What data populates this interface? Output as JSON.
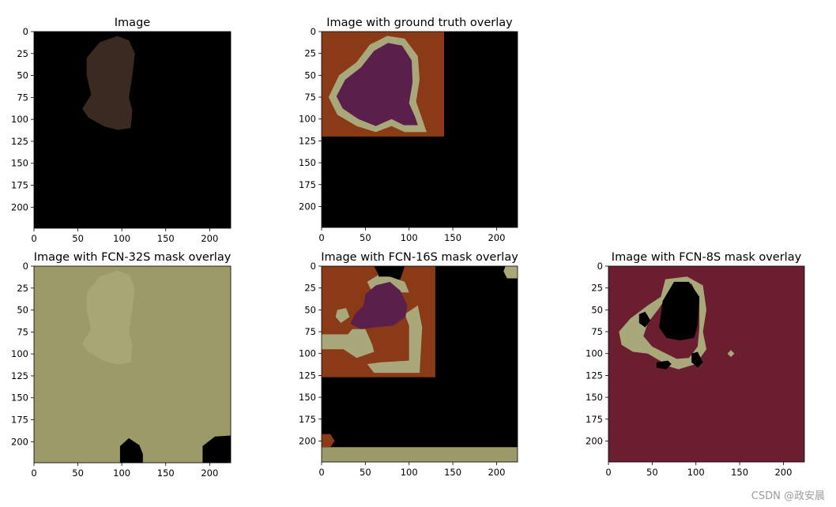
{
  "chart_data": [
    {
      "type": "image",
      "title": "Image",
      "xlim": [
        0,
        224
      ],
      "ylim": [
        224,
        0
      ],
      "x_ticks": [
        0,
        50,
        100,
        150,
        200
      ],
      "y_ticks": [
        0,
        25,
        50,
        75,
        100,
        125,
        150,
        175,
        200
      ],
      "background_color": "#000000",
      "regions": [
        {
          "label": "dog",
          "color": "#3a2a20",
          "points": [
            [
              60,
              30
            ],
            [
              75,
              12
            ],
            [
              95,
              5
            ],
            [
              108,
              10
            ],
            [
              115,
              25
            ],
            [
              112,
              50
            ],
            [
              108,
              75
            ],
            [
              112,
              90
            ],
            [
              110,
              110
            ],
            [
              95,
              112
            ],
            [
              80,
              108
            ],
            [
              62,
              98
            ],
            [
              55,
              88
            ],
            [
              65,
              72
            ],
            [
              60,
              50
            ]
          ]
        }
      ]
    },
    {
      "type": "image",
      "title": "Image with ground truth overlay",
      "xlim": [
        0,
        224
      ],
      "ylim": [
        224,
        0
      ],
      "x_ticks": [
        0,
        50,
        100,
        150,
        200
      ],
      "y_ticks": [
        0,
        25,
        50,
        75,
        100,
        125,
        150,
        175,
        200
      ],
      "background_color": "#000000",
      "regions": [
        {
          "label": "background",
          "color": "#8b3a17",
          "points": [
            [
              0,
              0
            ],
            [
              140,
              0
            ],
            [
              140,
              120
            ],
            [
              0,
              120
            ]
          ]
        },
        {
          "label": "border",
          "color": "#a8a87a",
          "points": [
            [
              55,
              15
            ],
            [
              75,
              5
            ],
            [
              95,
              8
            ],
            [
              110,
              28
            ],
            [
              112,
              55
            ],
            [
              108,
              80
            ],
            [
              115,
              100
            ],
            [
              120,
              115
            ],
            [
              95,
              115
            ],
            [
              80,
              108
            ],
            [
              62,
              115
            ],
            [
              40,
              108
            ],
            [
              18,
              95
            ],
            [
              8,
              75
            ],
            [
              20,
              50
            ],
            [
              40,
              35
            ]
          ]
        },
        {
          "label": "dog",
          "color": "#5a1f4a",
          "points": [
            [
              60,
              22
            ],
            [
              76,
              13
            ],
            [
              92,
              16
            ],
            [
              103,
              33
            ],
            [
              104,
              58
            ],
            [
              100,
              82
            ],
            [
              107,
              98
            ],
            [
              110,
              107
            ],
            [
              94,
              107
            ],
            [
              80,
              100
            ],
            [
              62,
              108
            ],
            [
              42,
              100
            ],
            [
              24,
              88
            ],
            [
              17,
              74
            ],
            [
              27,
              55
            ],
            [
              45,
              41
            ]
          ]
        }
      ]
    },
    {
      "type": "image",
      "title": "Image with FCN-32S mask overlay",
      "xlim": [
        0,
        224
      ],
      "ylim": [
        224,
        0
      ],
      "x_ticks": [
        0,
        50,
        100,
        150,
        200
      ],
      "y_ticks": [
        0,
        25,
        50,
        75,
        100,
        125,
        150,
        175,
        200
      ],
      "background_color": "#9b9a68",
      "regions": [
        {
          "label": "dog",
          "color": "#a8a673",
          "points": [
            [
              60,
              30
            ],
            [
              75,
              12
            ],
            [
              95,
              5
            ],
            [
              108,
              10
            ],
            [
              115,
              25
            ],
            [
              112,
              50
            ],
            [
              108,
              75
            ],
            [
              112,
              90
            ],
            [
              110,
              110
            ],
            [
              95,
              112
            ],
            [
              80,
              108
            ],
            [
              62,
              98
            ],
            [
              55,
              88
            ],
            [
              65,
              72
            ],
            [
              60,
              50
            ]
          ]
        },
        {
          "label": "black-left",
          "color": "#000000",
          "points": [
            [
              98,
              224
            ],
            [
              98,
              205
            ],
            [
              108,
              196
            ],
            [
              120,
              204
            ],
            [
              124,
              214
            ],
            [
              124,
              224
            ]
          ]
        },
        {
          "label": "black-right",
          "color": "#000000",
          "points": [
            [
              192,
              224
            ],
            [
              192,
              205
            ],
            [
              206,
              194
            ],
            [
              224,
              193
            ],
            [
              224,
              224
            ]
          ]
        }
      ]
    },
    {
      "type": "image",
      "title": "Image with FCN-16S mask overlay",
      "xlim": [
        0,
        224
      ],
      "ylim": [
        224,
        0
      ],
      "x_ticks": [
        0,
        50,
        100,
        150,
        200
      ],
      "y_ticks": [
        0,
        25,
        50,
        75,
        100,
        125,
        150,
        175,
        200
      ],
      "background_color": "#000000",
      "regions": [
        {
          "label": "orange-top",
          "color": "#8b3a17",
          "points": [
            [
              0,
              0
            ],
            [
              60,
              0
            ],
            [
              65,
              10
            ],
            [
              60,
              20
            ],
            [
              90,
              15
            ],
            [
              95,
              0
            ],
            [
              130,
              0
            ],
            [
              145,
              15
            ],
            [
              145,
              120
            ],
            [
              135,
              127
            ],
            [
              0,
              127
            ]
          ]
        },
        {
          "label": "yellow-left",
          "color": "#a8a87a",
          "points": [
            [
              0,
              78
            ],
            [
              30,
              78
            ],
            [
              35,
              72
            ],
            [
              50,
              72
            ],
            [
              58,
              90
            ],
            [
              60,
              98
            ],
            [
              40,
              105
            ],
            [
              25,
              95
            ],
            [
              0,
              95
            ]
          ]
        },
        {
          "label": "yellow-right",
          "color": "#a8a87a",
          "points": [
            [
              95,
              55
            ],
            [
              110,
              45
            ],
            [
              115,
              70
            ],
            [
              112,
              122
            ],
            [
              60,
              122
            ],
            [
              52,
              112
            ],
            [
              68,
              110
            ],
            [
              100,
              108
            ],
            [
              100,
              68
            ]
          ]
        },
        {
          "label": "yellow-top",
          "color": "#a8a87a",
          "points": [
            [
              52,
              18
            ],
            [
              65,
              10
            ],
            [
              78,
              12
            ],
            [
              95,
              18
            ],
            [
              100,
              30
            ],
            [
              88,
              30
            ],
            [
              70,
              25
            ],
            [
              58,
              30
            ]
          ]
        },
        {
          "label": "yellow-blob",
          "color": "#a8a87a",
          "points": [
            [
              18,
              50
            ],
            [
              28,
              48
            ],
            [
              32,
              58
            ],
            [
              22,
              65
            ],
            [
              16,
              58
            ]
          ]
        },
        {
          "label": "purple-dog",
          "color": "#5a1f4a",
          "points": [
            [
              50,
              32
            ],
            [
              62,
              22
            ],
            [
              78,
              18
            ],
            [
              90,
              28
            ],
            [
              98,
              45
            ],
            [
              96,
              58
            ],
            [
              82,
              68
            ],
            [
              62,
              70
            ],
            [
              45,
              72
            ],
            [
              33,
              66
            ],
            [
              38,
              55
            ],
            [
              48,
              45
            ]
          ]
        },
        {
          "label": "black-top-1",
          "color": "#000000",
          "points": [
            [
              65,
              0
            ],
            [
              80,
              0
            ],
            [
              80,
              12
            ],
            [
              65,
              12
            ]
          ]
        },
        {
          "label": "black-top-2",
          "color": "#000000",
          "points": [
            [
              130,
              0
            ],
            [
              224,
              0
            ],
            [
              224,
              224
            ],
            [
              145,
              224
            ],
            [
              145,
              130
            ],
            [
              130,
              130
            ],
            [
              130,
              15
            ]
          ]
        },
        {
          "label": "yellow-corner",
          "color": "#a8a87a",
          "points": [
            [
              210,
              0
            ],
            [
              224,
              0
            ],
            [
              224,
              14
            ],
            [
              212,
              14
            ],
            [
              208,
              6
            ]
          ]
        },
        {
          "label": "yellow-bottom",
          "color": "#9b9a68",
          "points": [
            [
              0,
              207
            ],
            [
              224,
              207
            ],
            [
              224,
              224
            ],
            [
              0,
              224
            ]
          ]
        },
        {
          "label": "orange-bottom",
          "color": "#8b3a17",
          "points": [
            [
              0,
              192
            ],
            [
              10,
              192
            ],
            [
              15,
              200
            ],
            [
              10,
              207
            ],
            [
              0,
              207
            ]
          ]
        }
      ]
    },
    {
      "type": "image",
      "title": "Image with FCN-8S mask overlay",
      "xlim": [
        0,
        224
      ],
      "ylim": [
        224,
        0
      ],
      "x_ticks": [
        0,
        50,
        100,
        150,
        200
      ],
      "y_ticks": [
        0,
        25,
        50,
        75,
        100,
        125,
        150,
        175,
        200
      ],
      "background_color": "#6a1e30",
      "regions": [
        {
          "label": "yellow-ring",
          "color": "#a8a87a",
          "points": [
            [
              65,
              15
            ],
            [
              90,
              12
            ],
            [
              108,
              22
            ],
            [
              112,
              50
            ],
            [
              108,
              75
            ],
            [
              112,
              95
            ],
            [
              100,
              112
            ],
            [
              80,
              118
            ],
            [
              70,
              115
            ],
            [
              62,
              110
            ],
            [
              45,
              100
            ],
            [
              28,
              98
            ],
            [
              15,
              90
            ],
            [
              12,
              75
            ],
            [
              25,
              60
            ],
            [
              45,
              45
            ],
            [
              60,
              35
            ]
          ]
        },
        {
          "label": "dark-outer",
          "color": "#6a1e30",
          "points": [
            [
              58,
              48
            ],
            [
              75,
              22
            ],
            [
              95,
              20
            ],
            [
              104,
              38
            ],
            [
              104,
              70
            ],
            [
              102,
              92
            ],
            [
              92,
              105
            ],
            [
              78,
              106
            ],
            [
              62,
              98
            ],
            [
              50,
              92
            ],
            [
              40,
              80
            ],
            [
              45,
              65
            ]
          ]
        },
        {
          "label": "black-dog",
          "color": "#000000",
          "points": [
            [
              62,
              40
            ],
            [
              75,
              18
            ],
            [
              92,
              18
            ],
            [
              104,
              35
            ],
            [
              102,
              68
            ],
            [
              98,
              82
            ],
            [
              82,
              85
            ],
            [
              66,
              82
            ],
            [
              58,
              70
            ]
          ]
        },
        {
          "label": "black-spot-1",
          "color": "#000000",
          "points": [
            [
              35,
              55
            ],
            [
              42,
              52
            ],
            [
              48,
              62
            ],
            [
              42,
              70
            ],
            [
              35,
              65
            ]
          ]
        },
        {
          "label": "black-spot-2",
          "color": "#000000",
          "points": [
            [
              55,
              110
            ],
            [
              68,
              108
            ],
            [
              72,
              112
            ],
            [
              66,
              118
            ],
            [
              55,
              116
            ]
          ]
        },
        {
          "label": "black-spot-3",
          "color": "#000000",
          "points": [
            [
              95,
              100
            ],
            [
              102,
              98
            ],
            [
              108,
              110
            ],
            [
              102,
              116
            ],
            [
              95,
              110
            ]
          ]
        },
        {
          "label": "yellow-dot",
          "color": "#a8a87a",
          "points": [
            [
              140,
              96
            ],
            [
              144,
              100
            ],
            [
              140,
              104
            ],
            [
              136,
              100
            ]
          ]
        }
      ]
    }
  ],
  "watermark": "CSDN @政安晨",
  "colors": {
    "axis": "#000000",
    "text": "#000000"
  }
}
